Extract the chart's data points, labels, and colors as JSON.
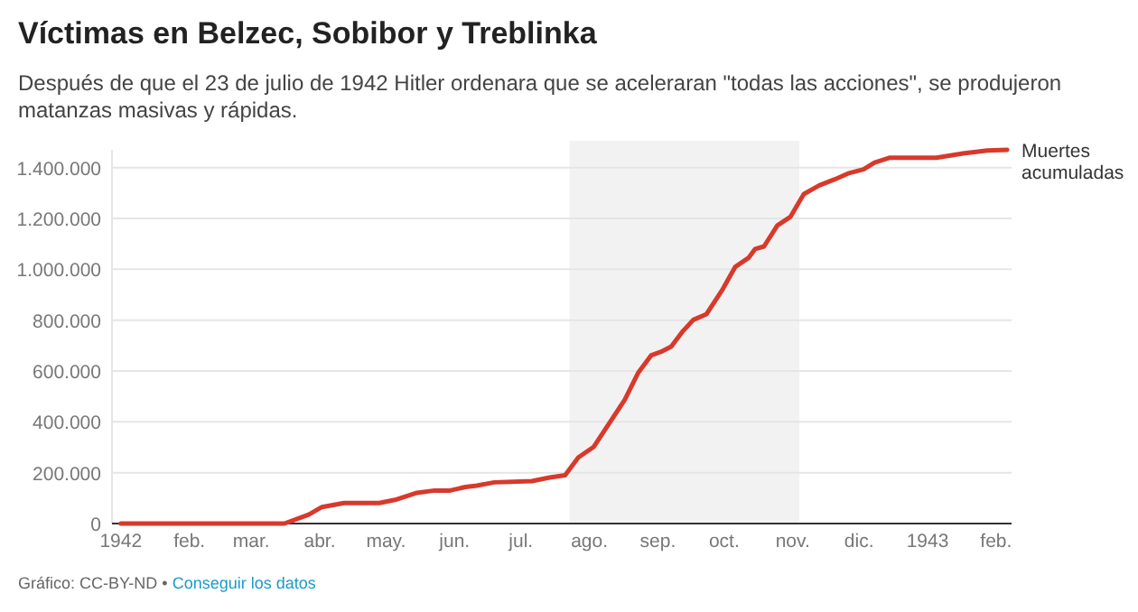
{
  "chart_data": {
    "type": "line",
    "title": "Víctimas en Belzec, Sobibor y Treblinka",
    "subtitle": "Después de que el 23 de julio de 1942 Hitler ordenara que se aceleraran \"todas las acciones\", se produjeron matanzas masivas y rápidas.",
    "annotations": [
      "Gráfico: CC-BY-ND •",
      "Conseguir los datos"
    ],
    "series": [
      {
        "name": "Muertes acumuladas",
        "color": "#d8392b",
        "x": [
          "1942-01-01",
          "1942-03-16",
          "1942-03-27",
          "1942-04-02",
          "1942-04-12",
          "1942-04-28",
          "1942-05-05",
          "1942-05-15",
          "1942-05-23",
          "1942-05-30",
          "1942-06-06",
          "1942-06-11",
          "1942-06-19",
          "1942-07-06",
          "1942-07-14",
          "1942-07-21",
          "1942-07-27",
          "1942-08-03",
          "1942-08-17",
          "1942-08-23",
          "1942-08-29",
          "1942-09-03",
          "1942-09-07",
          "1942-09-12",
          "1942-09-17",
          "1942-09-23",
          "1942-09-30",
          "1942-10-06",
          "1942-10-12",
          "1942-10-15",
          "1942-10-19",
          "1942-10-25",
          "1942-10-31",
          "1942-11-06",
          "1942-11-13",
          "1942-11-20",
          "1942-11-26",
          "1942-12-03",
          "1942-12-08",
          "1942-12-15",
          "1943-01-05",
          "1943-01-17",
          "1943-01-28",
          "1943-02-06"
        ],
        "values": [
          0,
          0,
          35000,
          65000,
          81000,
          81000,
          93000,
          121000,
          130000,
          130000,
          144000,
          149000,
          162000,
          167000,
          181000,
          190000,
          260000,
          302000,
          487000,
          592000,
          662000,
          678000,
          696000,
          754000,
          801000,
          824000,
          917000,
          1010000,
          1045000,
          1080000,
          1090000,
          1172000,
          1207000,
          1296000,
          1330000,
          1354000,
          1377000,
          1393000,
          1420000,
          1439000,
          1439000,
          1456000,
          1467000,
          1470000
        ]
      }
    ],
    "xlim": [
      "1941-12-28",
      "1943-02-08"
    ],
    "xticks": [
      {
        "value": "1942-01-01",
        "label": "1942"
      },
      {
        "value": "1942-02-01",
        "label": "feb."
      },
      {
        "value": "1942-03-01",
        "label": "mar."
      },
      {
        "value": "1942-04-01",
        "label": "abr."
      },
      {
        "value": "1942-05-01",
        "label": "may."
      },
      {
        "value": "1942-06-01",
        "label": "jun."
      },
      {
        "value": "1942-07-01",
        "label": "jul."
      },
      {
        "value": "1942-08-01",
        "label": "ago."
      },
      {
        "value": "1942-09-01",
        "label": "sep."
      },
      {
        "value": "1942-10-01",
        "label": "oct."
      },
      {
        "value": "1942-11-01",
        "label": "nov."
      },
      {
        "value": "1942-12-01",
        "label": "dic."
      },
      {
        "value": "1943-01-01",
        "label": "1943"
      },
      {
        "value": "1943-02-01",
        "label": "feb."
      }
    ],
    "ylim": [
      0,
      1470000
    ],
    "yticks": [
      0,
      {
        "value": 200000,
        "label": "200.000"
      },
      {
        "value": 400000,
        "label": "400.000"
      },
      {
        "value": 600000,
        "label": "600.000"
      },
      {
        "value": 800000,
        "label": "800.000"
      },
      {
        "value": 1000000,
        "label": "1.000.000"
      },
      {
        "value": 1200000,
        "label": "1.200.000"
      },
      {
        "value": 1400000,
        "label": "1.400.000"
      }
    ],
    "bands": [
      {
        "axis": "x",
        "from": "1942-07-23",
        "to": "1942-11-04",
        "color": "#f2f2f2"
      }
    ],
    "grid": "y",
    "legend": false,
    "marker": "none",
    "line_style": "solid"
  }
}
